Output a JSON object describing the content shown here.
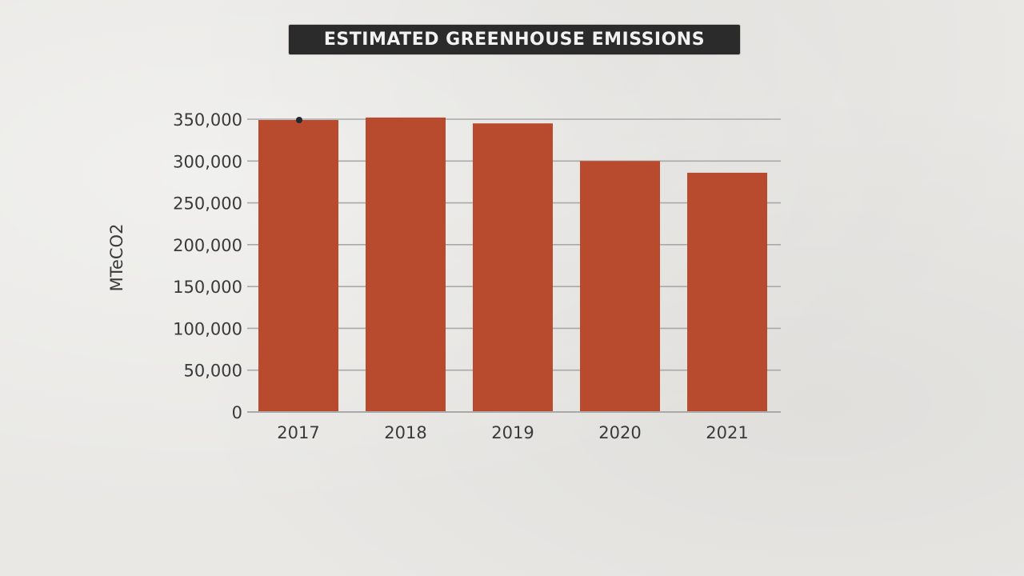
{
  "chart_data": {
    "type": "bar",
    "title": "ESTIMATED GREENHOUSE EMISSIONS",
    "xlabel": "",
    "ylabel": "MTeCO2",
    "categories": [
      "2017",
      "2018",
      "2019",
      "2020",
      "2021"
    ],
    "values": [
      349000,
      352000,
      345000,
      300000,
      286000
    ],
    "ylim": [
      0,
      350000
    ],
    "yticks": [
      "0",
      "50,000",
      "100,000",
      "150,000",
      "200,000",
      "250,000",
      "300,000",
      "350,000"
    ],
    "grid": true,
    "bar_color": "#b84a2e",
    "grid_color": "#a9a9a9"
  }
}
